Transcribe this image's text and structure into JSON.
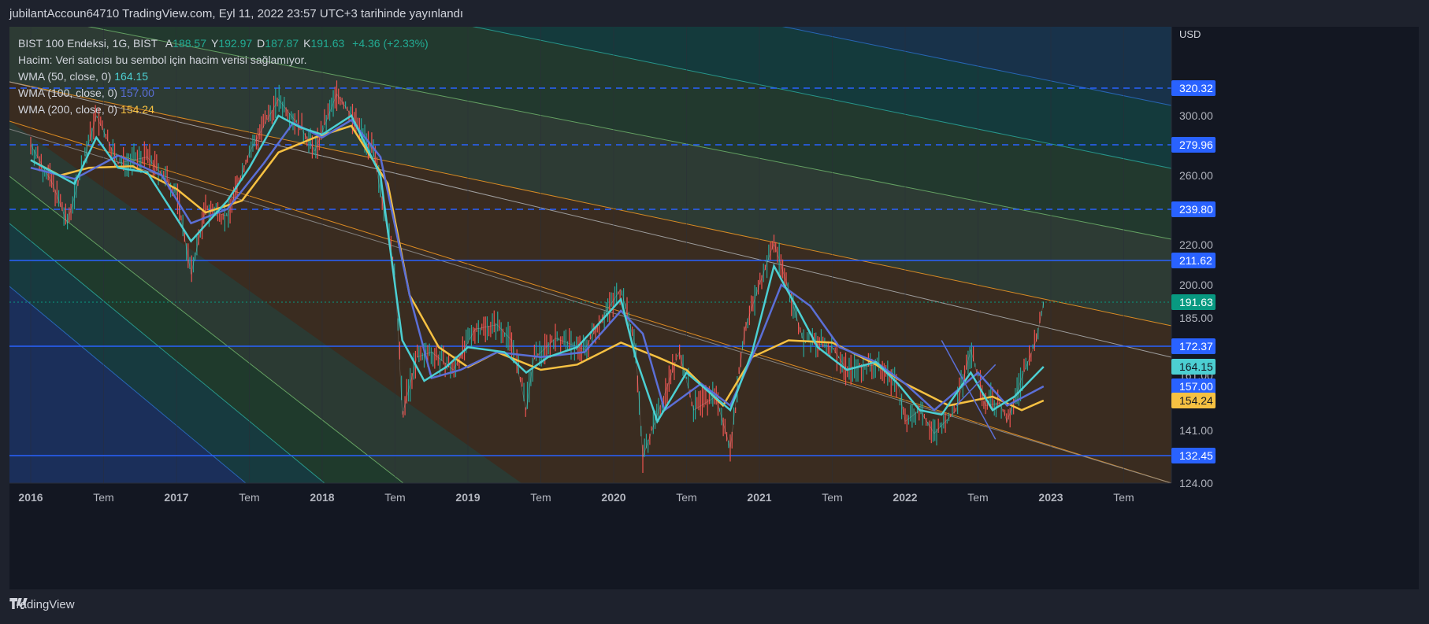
{
  "header": {
    "publisher": "jubilantAccoun64710 TradingView.com, Eyl 11, 2022 23:57 UTC+3 tarihinde yayınlandı"
  },
  "legend": {
    "symbol": "BIST 100 Endeksi, 1G, BIST",
    "ohlc": [
      {
        "k": "A",
        "v": "188.57"
      },
      {
        "k": "Y",
        "v": "192.97"
      },
      {
        "k": "D",
        "v": "187.87"
      },
      {
        "k": "K",
        "v": "191.63"
      }
    ],
    "change": "+4.36 (+2.33%)",
    "volume": "Hacim: Veri satıcısı bu sembol için hacim verisi sağlamıyor.",
    "wma": [
      {
        "label": "WMA (50, close, 0)",
        "value": "164.15",
        "color": "#4ccfd2"
      },
      {
        "label": "WMA (100, close, 0)",
        "value": "157.00",
        "color": "#5b6fd6"
      },
      {
        "label": "WMA (200, close, 0)",
        "value": "154.24",
        "color": "#f6c142"
      }
    ]
  },
  "footer": {
    "brand": "TradingView"
  },
  "chart_data": {
    "type": "line",
    "currency": "USD",
    "y_axis_ticks": [
      "320.32",
      "300.00",
      "279.96",
      "260.00",
      "239.80",
      "220.00",
      "211.62",
      "200.00",
      "191.63",
      "185.00",
      "172.37",
      "164.15",
      "161.00",
      "157.00",
      "154.24",
      "141.00",
      "132.45",
      "124.00"
    ],
    "x_axis_ticks": [
      "2016",
      "Tem",
      "2017",
      "Tem",
      "2018",
      "Tem",
      "2019",
      "Tem",
      "2020",
      "Tem",
      "2021",
      "Tem",
      "2022",
      "Tem",
      "2023",
      "Tem"
    ],
    "horizontal_levels": [
      {
        "value": 320.32,
        "style": "dashed",
        "label": "320.32"
      },
      {
        "value": 279.96,
        "style": "dashed",
        "label": "279.96"
      },
      {
        "value": 239.8,
        "style": "dashed",
        "label": "239.80"
      },
      {
        "value": 211.62,
        "style": "solid",
        "label": "211.62"
      },
      {
        "value": 172.37,
        "style": "solid",
        "label": "172.37"
      },
      {
        "value": 132.45,
        "style": "solid",
        "label": "132.45"
      }
    ],
    "last_price": {
      "value": 191.63,
      "label": "191.63",
      "color": "#089981"
    },
    "wma_badges": [
      {
        "value": 164.15,
        "label": "164.15",
        "color": "#4ccfd2"
      },
      {
        "value": 157.0,
        "label": "157.00",
        "color": "#2962ff"
      },
      {
        "value": 154.24,
        "label": "154.24",
        "color": "#f6c142"
      }
    ],
    "price_path": [
      [
        2016.0,
        280
      ],
      [
        2016.15,
        255
      ],
      [
        2016.25,
        232
      ],
      [
        2016.45,
        300
      ],
      [
        2016.6,
        268
      ],
      [
        2016.8,
        272
      ],
      [
        2017.0,
        250
      ],
      [
        2017.1,
        205
      ],
      [
        2017.2,
        240
      ],
      [
        2017.35,
        236
      ],
      [
        2017.5,
        275
      ],
      [
        2017.7,
        312
      ],
      [
        2017.85,
        292
      ],
      [
        2017.95,
        276
      ],
      [
        2018.1,
        316
      ],
      [
        2018.2,
        300
      ],
      [
        2018.35,
        276
      ],
      [
        2018.5,
        205
      ],
      [
        2018.55,
        148
      ],
      [
        2018.65,
        168
      ],
      [
        2018.75,
        170
      ],
      [
        2018.9,
        163
      ],
      [
        2019.05,
        180
      ],
      [
        2019.2,
        182
      ],
      [
        2019.3,
        175
      ],
      [
        2019.4,
        150
      ],
      [
        2019.45,
        167
      ],
      [
        2019.6,
        176
      ],
      [
        2019.8,
        171
      ],
      [
        2019.95,
        188
      ],
      [
        2020.05,
        198
      ],
      [
        2020.15,
        172
      ],
      [
        2020.2,
        132
      ],
      [
        2020.3,
        148
      ],
      [
        2020.45,
        170
      ],
      [
        2020.55,
        150
      ],
      [
        2020.7,
        155
      ],
      [
        2020.8,
        135
      ],
      [
        2020.9,
        180
      ],
      [
        2021.0,
        200
      ],
      [
        2021.1,
        221
      ],
      [
        2021.2,
        198
      ],
      [
        2021.3,
        175
      ],
      [
        2021.5,
        172
      ],
      [
        2021.6,
        163
      ],
      [
        2021.8,
        165
      ],
      [
        2021.95,
        158
      ],
      [
        2022.0,
        145
      ],
      [
        2022.1,
        150
      ],
      [
        2022.2,
        140
      ],
      [
        2022.35,
        150
      ],
      [
        2022.45,
        171
      ],
      [
        2022.55,
        152
      ],
      [
        2022.65,
        153
      ],
      [
        2022.7,
        145
      ],
      [
        2022.8,
        160
      ],
      [
        2022.9,
        175
      ],
      [
        2022.95,
        191.63
      ]
    ],
    "wma50": [
      [
        2016.0,
        270
      ],
      [
        2016.3,
        255
      ],
      [
        2016.45,
        285
      ],
      [
        2016.6,
        265
      ],
      [
        2016.8,
        262
      ],
      [
        2017.0,
        235
      ],
      [
        2017.1,
        222
      ],
      [
        2017.35,
        245
      ],
      [
        2017.5,
        265
      ],
      [
        2017.7,
        300
      ],
      [
        2017.85,
        292
      ],
      [
        2018.0,
        287
      ],
      [
        2018.2,
        300
      ],
      [
        2018.4,
        260
      ],
      [
        2018.55,
        175
      ],
      [
        2018.7,
        159
      ],
      [
        2018.85,
        164
      ],
      [
        2019.0,
        172
      ],
      [
        2019.25,
        170
      ],
      [
        2019.4,
        162
      ],
      [
        2019.55,
        168
      ],
      [
        2019.75,
        172
      ],
      [
        2020.05,
        193
      ],
      [
        2020.15,
        168
      ],
      [
        2020.3,
        145
      ],
      [
        2020.5,
        162
      ],
      [
        2020.65,
        156
      ],
      [
        2020.8,
        150
      ],
      [
        2020.95,
        170
      ],
      [
        2021.1,
        209
      ],
      [
        2021.25,
        190
      ],
      [
        2021.4,
        172
      ],
      [
        2021.6,
        163
      ],
      [
        2021.8,
        166
      ],
      [
        2021.95,
        158
      ],
      [
        2022.1,
        150
      ],
      [
        2022.25,
        148
      ],
      [
        2022.45,
        162
      ],
      [
        2022.6,
        150
      ],
      [
        2022.75,
        155
      ],
      [
        2022.95,
        164.15
      ]
    ],
    "wma100": [
      [
        2016.0,
        265
      ],
      [
        2016.3,
        258
      ],
      [
        2016.6,
        273
      ],
      [
        2016.9,
        260
      ],
      [
        2017.1,
        232
      ],
      [
        2017.35,
        240
      ],
      [
        2017.6,
        268
      ],
      [
        2017.8,
        295
      ],
      [
        2018.0,
        285
      ],
      [
        2018.2,
        297
      ],
      [
        2018.4,
        272
      ],
      [
        2018.6,
        195
      ],
      [
        2018.75,
        160
      ],
      [
        2018.95,
        163
      ],
      [
        2019.2,
        170
      ],
      [
        2019.5,
        168
      ],
      [
        2019.8,
        170
      ],
      [
        2020.05,
        188
      ],
      [
        2020.2,
        178
      ],
      [
        2020.35,
        150
      ],
      [
        2020.6,
        158
      ],
      [
        2020.8,
        152
      ],
      [
        2021.0,
        175
      ],
      [
        2021.15,
        200
      ],
      [
        2021.35,
        190
      ],
      [
        2021.55,
        172
      ],
      [
        2021.8,
        166
      ],
      [
        2022.0,
        158
      ],
      [
        2022.2,
        150
      ],
      [
        2022.5,
        162
      ],
      [
        2022.7,
        152
      ],
      [
        2022.95,
        157.0
      ]
    ],
    "wma200": [
      [
        2016.0,
        270
      ],
      [
        2016.2,
        260
      ],
      [
        2016.4,
        265
      ],
      [
        2016.7,
        266
      ],
      [
        2017.0,
        252
      ],
      [
        2017.2,
        238
      ],
      [
        2017.45,
        245
      ],
      [
        2017.7,
        275
      ],
      [
        2017.95,
        285
      ],
      [
        2018.2,
        293
      ],
      [
        2018.45,
        255
      ],
      [
        2018.6,
        195
      ],
      [
        2018.8,
        172
      ],
      [
        2019.0,
        164
      ],
      [
        2019.2,
        170
      ],
      [
        2019.5,
        163
      ],
      [
        2019.75,
        165
      ],
      [
        2020.05,
        174
      ],
      [
        2020.3,
        168
      ],
      [
        2020.5,
        163
      ],
      [
        2020.75,
        152
      ],
      [
        2020.95,
        168
      ],
      [
        2021.2,
        175
      ],
      [
        2021.5,
        174
      ],
      [
        2021.8,
        165
      ],
      [
        2022.0,
        158
      ],
      [
        2022.3,
        152
      ],
      [
        2022.6,
        155
      ],
      [
        2022.8,
        150
      ],
      [
        2022.95,
        154.24
      ]
    ]
  }
}
